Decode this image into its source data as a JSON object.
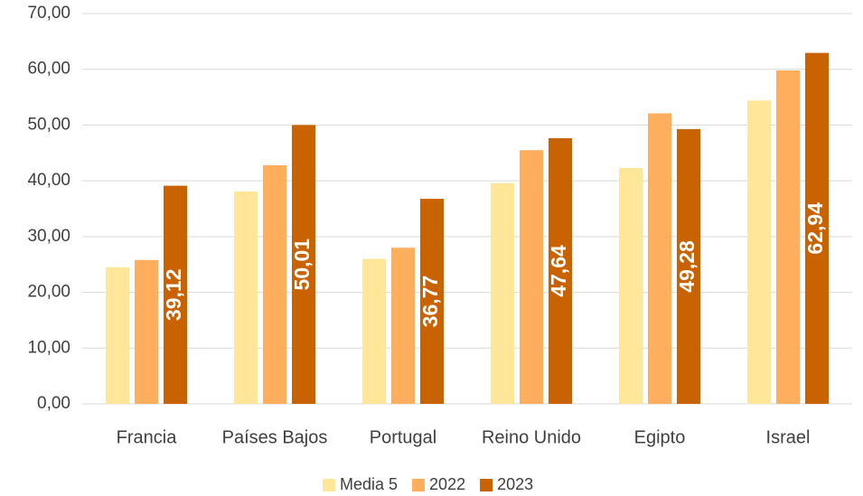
{
  "chart_data": {
    "type": "bar",
    "categories": [
      "Francia",
      "Países Bajos",
      "Portugal",
      "Reino Unido",
      "Egipto",
      "Israel"
    ],
    "series": [
      {
        "name": "Media 5",
        "color": "#ffe699",
        "values": [
          24.5,
          38.1,
          26.0,
          39.6,
          42.3,
          54.4
        ]
      },
      {
        "name": "2022",
        "color": "#ffae5e",
        "values": [
          25.8,
          42.8,
          28.0,
          45.5,
          52.1,
          59.8
        ]
      },
      {
        "name": "2023",
        "color": "#c96200",
        "values": [
          39.12,
          50.01,
          36.77,
          47.64,
          49.28,
          62.94
        ],
        "value_labels": [
          "39,12",
          "50,01",
          "36,77",
          "47,64",
          "49,28",
          "62,94"
        ]
      }
    ],
    "ylim": [
      0,
      70
    ],
    "yticks": [
      {
        "value": 0,
        "label": "0,00"
      },
      {
        "value": 10,
        "label": "10,00"
      },
      {
        "value": 20,
        "label": "20,00"
      },
      {
        "value": 30,
        "label": "30,00"
      },
      {
        "value": 40,
        "label": "40,00"
      },
      {
        "value": 50,
        "label": "50,00"
      },
      {
        "value": 60,
        "label": "60,00"
      },
      {
        "value": 70,
        "label": "70,00"
      }
    ],
    "grid": true,
    "legend": "bottom"
  }
}
